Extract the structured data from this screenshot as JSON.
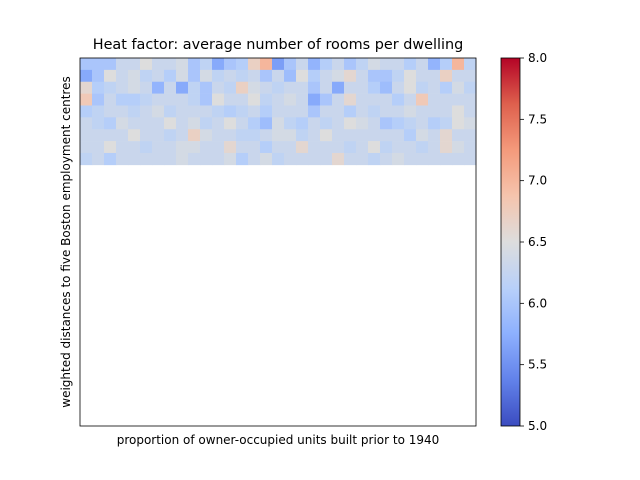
{
  "chart_data": {
    "type": "heatmap",
    "title": "Heat factor: average number of rooms per dwelling",
    "xlabel": "proportion of owner-occupied units built prior to 1940",
    "ylabel": "weighted distances to five Boston employment centres",
    "colormap": "coolwarm",
    "vmin": 5.0,
    "vmax": 8.0,
    "colorbar_ticks": [
      "5.0",
      "5.5",
      "6.0",
      "6.5",
      "7.0",
      "7.5",
      "8.0"
    ],
    "xticks_shown": false,
    "yticks_shown": false,
    "grid": false,
    "n_cols": 33,
    "n_rows": 31,
    "cells": [
      [
        0,
        0,
        6.0
      ],
      [
        1,
        0,
        6.0
      ],
      [
        2,
        0,
        6.0
      ],
      [
        3,
        0,
        6.3
      ],
      [
        4,
        0,
        6.3
      ],
      [
        5,
        0,
        6.5
      ],
      [
        6,
        0,
        6.3
      ],
      [
        7,
        0,
        6.3
      ],
      [
        8,
        0,
        6.4
      ],
      [
        9,
        0,
        6.0
      ],
      [
        10,
        0,
        6.2
      ],
      [
        11,
        0,
        5.7
      ],
      [
        12,
        0,
        6.0
      ],
      [
        13,
        0,
        6.1
      ],
      [
        14,
        0,
        6.7
      ],
      [
        15,
        0,
        7.0
      ],
      [
        16,
        0,
        5.6
      ],
      [
        17,
        0,
        6.0
      ],
      [
        18,
        0,
        6.3
      ],
      [
        19,
        0,
        5.8
      ],
      [
        20,
        0,
        6.1
      ],
      [
        21,
        0,
        6.3
      ],
      [
        22,
        0,
        6.0
      ],
      [
        23,
        0,
        6.2
      ],
      [
        24,
        0,
        6.4
      ],
      [
        25,
        0,
        6.3
      ],
      [
        26,
        0,
        6.3
      ],
      [
        27,
        0,
        6.1
      ],
      [
        28,
        0,
        6.3
      ],
      [
        29,
        0,
        5.8
      ],
      [
        30,
        0,
        6.1
      ],
      [
        31,
        0,
        7.0
      ],
      [
        32,
        0,
        6.2
      ],
      [
        0,
        1,
        5.7
      ],
      [
        1,
        1,
        6.0
      ],
      [
        2,
        1,
        6.5
      ],
      [
        3,
        1,
        6.3
      ],
      [
        4,
        1,
        6.4
      ],
      [
        5,
        1,
        6.2
      ],
      [
        6,
        1,
        6.3
      ],
      [
        7,
        1,
        6.1
      ],
      [
        8,
        1,
        6.4
      ],
      [
        9,
        1,
        6.0
      ],
      [
        10,
        1,
        6.4
      ],
      [
        11,
        1,
        6.2
      ],
      [
        12,
        1,
        6.3
      ],
      [
        13,
        1,
        6.2
      ],
      [
        14,
        1,
        6.3
      ],
      [
        15,
        1,
        6.0
      ],
      [
        16,
        1,
        6.3
      ],
      [
        17,
        1,
        5.9
      ],
      [
        18,
        1,
        6.5
      ],
      [
        19,
        1,
        6.1
      ],
      [
        20,
        1,
        6.3
      ],
      [
        21,
        1,
        6.4
      ],
      [
        22,
        1,
        6.6
      ],
      [
        23,
        1,
        6.3
      ],
      [
        24,
        1,
        6.0
      ],
      [
        25,
        1,
        6.0
      ],
      [
        26,
        1,
        6.2
      ],
      [
        27,
        1,
        6.5
      ],
      [
        28,
        1,
        6.3
      ],
      [
        29,
        1,
        6.3
      ],
      [
        30,
        1,
        6.7
      ],
      [
        31,
        1,
        6.3
      ],
      [
        32,
        1,
        6.3
      ],
      [
        0,
        2,
        6.6
      ],
      [
        1,
        2,
        6.1
      ],
      [
        2,
        2,
        6.2
      ],
      [
        3,
        2,
        6.3
      ],
      [
        4,
        2,
        6.4
      ],
      [
        5,
        2,
        6.3
      ],
      [
        6,
        2,
        5.8
      ],
      [
        7,
        2,
        6.3
      ],
      [
        8,
        2,
        5.7
      ],
      [
        9,
        2,
        6.2
      ],
      [
        10,
        2,
        6.0
      ],
      [
        11,
        2,
        6.3
      ],
      [
        12,
        2,
        6.2
      ],
      [
        13,
        2,
        6.7
      ],
      [
        14,
        2,
        6.4
      ],
      [
        15,
        2,
        6.3
      ],
      [
        16,
        2,
        6.2
      ],
      [
        17,
        2,
        6.3
      ],
      [
        18,
        2,
        6.3
      ],
      [
        19,
        2,
        6.0
      ],
      [
        20,
        2,
        6.3
      ],
      [
        21,
        2,
        5.7
      ],
      [
        22,
        2,
        6.3
      ],
      [
        23,
        2,
        6.3
      ],
      [
        24,
        2,
        6.1
      ],
      [
        25,
        2,
        5.9
      ],
      [
        26,
        2,
        6.3
      ],
      [
        27,
        2,
        6.5
      ],
      [
        28,
        2,
        6.2
      ],
      [
        29,
        2,
        6.3
      ],
      [
        30,
        2,
        6.1
      ],
      [
        31,
        2,
        6.4
      ],
      [
        32,
        2,
        6.2
      ],
      [
        0,
        3,
        6.8
      ],
      [
        1,
        3,
        6.0
      ],
      [
        2,
        3,
        6.3
      ],
      [
        3,
        3,
        6.1
      ],
      [
        4,
        3,
        6.1
      ],
      [
        5,
        3,
        6.2
      ],
      [
        6,
        3,
        6.3
      ],
      [
        7,
        3,
        6.3
      ],
      [
        8,
        3,
        6.3
      ],
      [
        9,
        3,
        6.2
      ],
      [
        10,
        3,
        6.0
      ],
      [
        11,
        3,
        6.5
      ],
      [
        12,
        3,
        6.3
      ],
      [
        13,
        3,
        6.3
      ],
      [
        14,
        3,
        6.5
      ],
      [
        15,
        3,
        6.2
      ],
      [
        16,
        3,
        6.3
      ],
      [
        17,
        3,
        6.4
      ],
      [
        18,
        3,
        6.3
      ],
      [
        19,
        3,
        5.7
      ],
      [
        20,
        3,
        6.0
      ],
      [
        21,
        3,
        6.3
      ],
      [
        22,
        3,
        6.6
      ],
      [
        23,
        3,
        6.3
      ],
      [
        24,
        3,
        6.3
      ],
      [
        25,
        3,
        6.3
      ],
      [
        26,
        3,
        6.1
      ],
      [
        27,
        3,
        6.3
      ],
      [
        28,
        3,
        6.8
      ],
      [
        29,
        3,
        6.3
      ],
      [
        30,
        3,
        6.3
      ],
      [
        31,
        3,
        6.3
      ],
      [
        32,
        3,
        6.3
      ],
      [
        0,
        4,
        6.1
      ],
      [
        1,
        4,
        6.2
      ],
      [
        2,
        4,
        6.3
      ],
      [
        3,
        4,
        6.3
      ],
      [
        4,
        4,
        6.2
      ],
      [
        5,
        4,
        6.3
      ],
      [
        6,
        4,
        6.4
      ],
      [
        7,
        4,
        6.2
      ],
      [
        8,
        4,
        6.3
      ],
      [
        9,
        4,
        6.3
      ],
      [
        10,
        4,
        6.3
      ],
      [
        11,
        4,
        6.2
      ],
      [
        12,
        4,
        6.1
      ],
      [
        13,
        4,
        6.2
      ],
      [
        14,
        4,
        6.3
      ],
      [
        15,
        4,
        6.1
      ],
      [
        16,
        4,
        6.3
      ],
      [
        17,
        4,
        6.3
      ],
      [
        18,
        4,
        6.3
      ],
      [
        19,
        4,
        6.0
      ],
      [
        20,
        4,
        6.3
      ],
      [
        21,
        4,
        6.3
      ],
      [
        22,
        4,
        6.1
      ],
      [
        23,
        4,
        6.3
      ],
      [
        24,
        4,
        6.2
      ],
      [
        25,
        4,
        6.3
      ],
      [
        26,
        4,
        6.3
      ],
      [
        27,
        4,
        6.4
      ],
      [
        28,
        4,
        6.3
      ],
      [
        29,
        4,
        6.3
      ],
      [
        30,
        4,
        6.3
      ],
      [
        31,
        4,
        6.5
      ],
      [
        32,
        4,
        6.3
      ],
      [
        0,
        5,
        6.3
      ],
      [
        1,
        5,
        6.2
      ],
      [
        2,
        5,
        6.1
      ],
      [
        3,
        5,
        6.4
      ],
      [
        4,
        5,
        6.3
      ],
      [
        5,
        5,
        6.3
      ],
      [
        6,
        5,
        6.3
      ],
      [
        7,
        5,
        6.5
      ],
      [
        8,
        5,
        6.3
      ],
      [
        9,
        5,
        6.4
      ],
      [
        10,
        5,
        6.2
      ],
      [
        11,
        5,
        6.3
      ],
      [
        12,
        5,
        6.5
      ],
      [
        13,
        5,
        6.3
      ],
      [
        14,
        5,
        6.1
      ],
      [
        15,
        5,
        5.9
      ],
      [
        16,
        5,
        6.4
      ],
      [
        17,
        5,
        6.2
      ],
      [
        18,
        5,
        6.1
      ],
      [
        19,
        5,
        6.3
      ],
      [
        20,
        5,
        6.2
      ],
      [
        21,
        5,
        6.3
      ],
      [
        22,
        5,
        6.5
      ],
      [
        23,
        5,
        6.4
      ],
      [
        24,
        5,
        6.3
      ],
      [
        25,
        5,
        6.0
      ],
      [
        26,
        5,
        6.1
      ],
      [
        27,
        5,
        6.2
      ],
      [
        28,
        5,
        6.3
      ],
      [
        29,
        5,
        6.1
      ],
      [
        30,
        5,
        6.2
      ],
      [
        31,
        5,
        6.5
      ],
      [
        32,
        5,
        6.4
      ],
      [
        0,
        6,
        6.3
      ],
      [
        1,
        6,
        6.3
      ],
      [
        2,
        6,
        6.3
      ],
      [
        3,
        6,
        6.3
      ],
      [
        4,
        6,
        6.5
      ],
      [
        5,
        6,
        6.3
      ],
      [
        6,
        6,
        6.3
      ],
      [
        7,
        6,
        6.2
      ],
      [
        8,
        6,
        6.3
      ],
      [
        9,
        6,
        6.7
      ],
      [
        10,
        6,
        6.4
      ],
      [
        11,
        6,
        6.3
      ],
      [
        12,
        6,
        6.3
      ],
      [
        13,
        6,
        6.2
      ],
      [
        14,
        6,
        6.2
      ],
      [
        15,
        6,
        6.3
      ],
      [
        16,
        6,
        6.4
      ],
      [
        17,
        6,
        6.4
      ],
      [
        18,
        6,
        6.2
      ],
      [
        19,
        6,
        6.3
      ],
      [
        20,
        6,
        6.5
      ],
      [
        21,
        6,
        6.3
      ],
      [
        22,
        6,
        6.3
      ],
      [
        23,
        6,
        6.3
      ],
      [
        24,
        6,
        6.3
      ],
      [
        25,
        6,
        6.3
      ],
      [
        26,
        6,
        6.3
      ],
      [
        27,
        6,
        6.1
      ],
      [
        28,
        6,
        6.4
      ],
      [
        29,
        6,
        6.3
      ],
      [
        30,
        6,
        6.6
      ],
      [
        31,
        6,
        6.3
      ],
      [
        32,
        6,
        6.3
      ],
      [
        0,
        7,
        6.3
      ],
      [
        1,
        7,
        6.3
      ],
      [
        2,
        7,
        6.5
      ],
      [
        3,
        7,
        6.3
      ],
      [
        4,
        7,
        6.3
      ],
      [
        5,
        7,
        6.2
      ],
      [
        6,
        7,
        6.3
      ],
      [
        7,
        7,
        6.3
      ],
      [
        8,
        7,
        6.4
      ],
      [
        9,
        7,
        6.4
      ],
      [
        10,
        7,
        6.3
      ],
      [
        11,
        7,
        6.3
      ],
      [
        12,
        7,
        6.6
      ],
      [
        13,
        7,
        6.3
      ],
      [
        14,
        7,
        6.3
      ],
      [
        15,
        7,
        6.1
      ],
      [
        16,
        7,
        6.3
      ],
      [
        17,
        7,
        6.3
      ],
      [
        18,
        7,
        6.6
      ],
      [
        19,
        7,
        6.3
      ],
      [
        20,
        7,
        6.3
      ],
      [
        21,
        7,
        6.3
      ],
      [
        22,
        7,
        6.2
      ],
      [
        23,
        7,
        6.3
      ],
      [
        24,
        7,
        6.5
      ],
      [
        25,
        7,
        6.2
      ],
      [
        26,
        7,
        6.3
      ],
      [
        27,
        7,
        6.3
      ],
      [
        28,
        7,
        6.2
      ],
      [
        29,
        7,
        6.3
      ],
      [
        30,
        7,
        6.6
      ],
      [
        31,
        7,
        6.4
      ],
      [
        32,
        7,
        6.3
      ],
      [
        0,
        8,
        6.2
      ],
      [
        1,
        8,
        6.3
      ],
      [
        2,
        8,
        6.1
      ],
      [
        3,
        8,
        6.3
      ],
      [
        4,
        8,
        6.3
      ],
      [
        5,
        8,
        6.3
      ],
      [
        6,
        8,
        6.3
      ],
      [
        7,
        8,
        6.3
      ],
      [
        8,
        8,
        6.4
      ],
      [
        9,
        8,
        6.3
      ],
      [
        10,
        8,
        6.3
      ],
      [
        11,
        8,
        6.3
      ],
      [
        12,
        8,
        6.4
      ],
      [
        13,
        8,
        6.1
      ],
      [
        14,
        8,
        6.3
      ],
      [
        15,
        8,
        6.4
      ],
      [
        16,
        8,
        6.2
      ],
      [
        17,
        8,
        6.3
      ],
      [
        18,
        8,
        6.3
      ],
      [
        19,
        8,
        6.3
      ],
      [
        20,
        8,
        6.3
      ],
      [
        21,
        8,
        6.6
      ],
      [
        22,
        8,
        6.3
      ],
      [
        23,
        8,
        6.3
      ],
      [
        24,
        8,
        6.2
      ],
      [
        25,
        8,
        6.3
      ],
      [
        26,
        8,
        6.4
      ],
      [
        27,
        8,
        6.3
      ],
      [
        28,
        8,
        6.3
      ],
      [
        29,
        8,
        6.3
      ],
      [
        30,
        8,
        6.3
      ],
      [
        31,
        8,
        6.3
      ],
      [
        32,
        8,
        6.3
      ]
    ]
  }
}
